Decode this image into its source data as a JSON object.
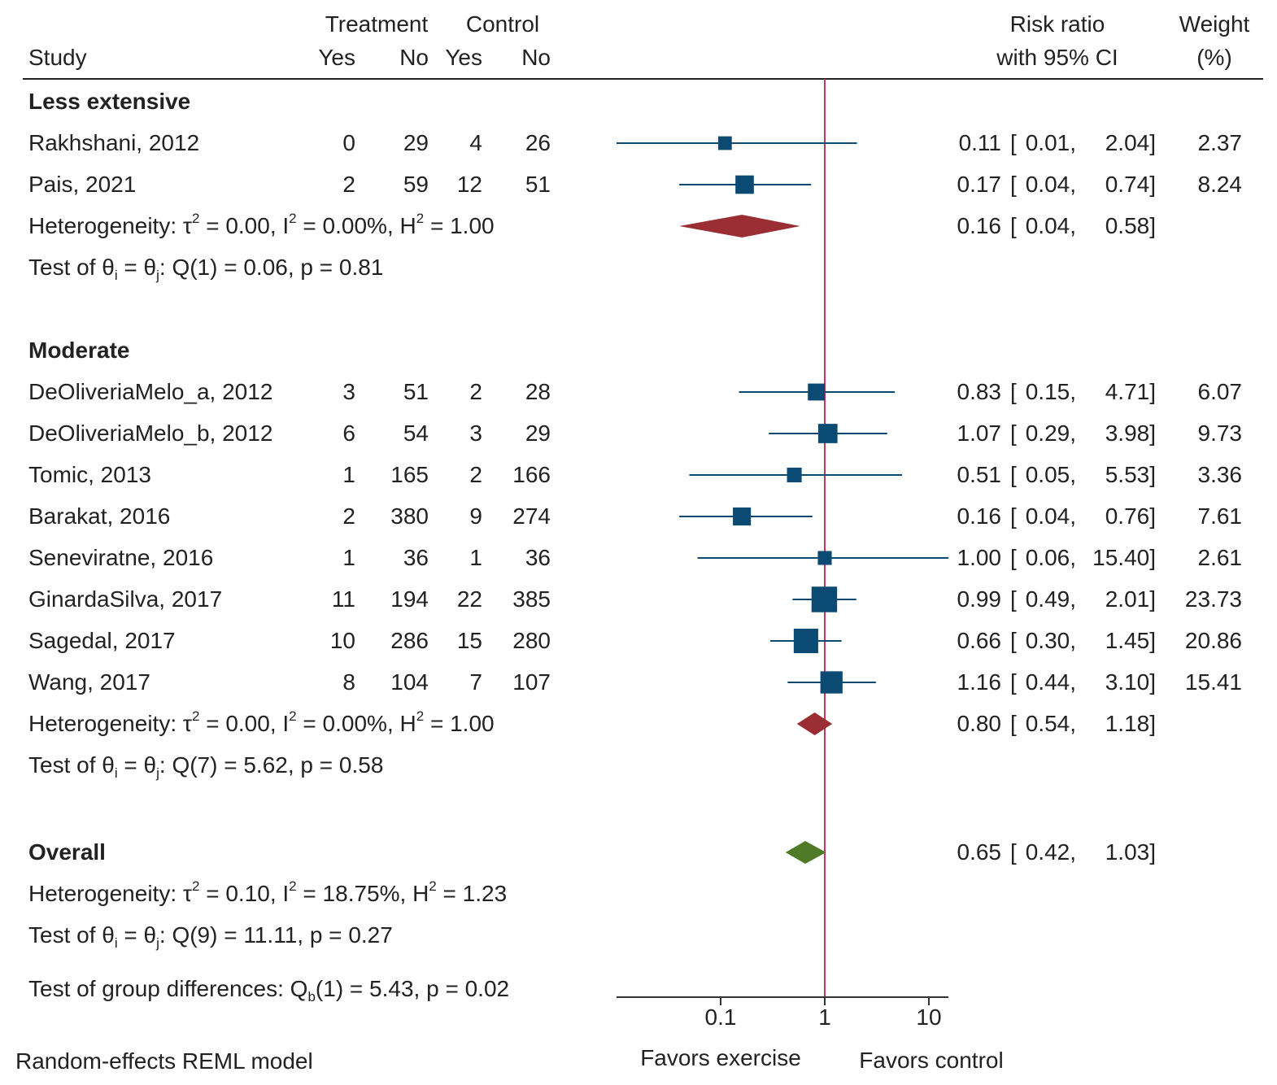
{
  "header": {
    "study": "Study",
    "treatment": "Treatment",
    "control": "Control",
    "yes": "Yes",
    "no": "No",
    "risk_ratio_line1": "Risk ratio",
    "risk_ratio_line2": "with 95% CI",
    "weight_line1": "Weight",
    "weight_line2": "(%)"
  },
  "chart_data": {
    "type": "forest",
    "scale": "log",
    "xlim": [
      0.01,
      15.4
    ],
    "xticks": [
      0.1,
      1,
      10
    ],
    "tick_labels": [
      "0.1",
      "1",
      "10"
    ],
    "reference_line": 1,
    "favors_left": "Favors exercise",
    "favors_right": "Favors control",
    "model_note": "Random-effects REML model",
    "groups": [
      {
        "name": "Less extensive",
        "studies": [
          {
            "name": "Rakhshani, 2012",
            "t_yes": "0",
            "t_no": "29",
            "c_yes": "4",
            "c_no": "26",
            "rr": 0.11,
            "lo": 0.01,
            "hi": 2.04,
            "rr_label": "0.11",
            "lo_label": "0.01,",
            "hi_label": "2.04]",
            "weight": 2.37,
            "weight_label": "2.37"
          },
          {
            "name": "Pais, 2021",
            "t_yes": "2",
            "t_no": "59",
            "c_yes": "12",
            "c_no": "51",
            "rr": 0.17,
            "lo": 0.04,
            "hi": 0.74,
            "rr_label": "0.17",
            "lo_label": "0.04,",
            "hi_label": "0.74]",
            "weight": 8.24,
            "weight_label": "8.24"
          }
        ],
        "summary": {
          "rr": 0.16,
          "lo": 0.04,
          "hi": 0.58,
          "rr_label": "0.16",
          "lo_label": "0.04,",
          "hi_label": "0.58]"
        },
        "heterogeneity": {
          "prefix": "Heterogeneity: τ",
          "tau": " = 0.00, I",
          "i2": " = 0.00%, H",
          "h2": " = 1.00"
        },
        "test": {
          "prefix": "Test of θ",
          "mid": " = θ",
          "stat": ": Q(1) = 0.06, p = 0.81"
        }
      },
      {
        "name": "Moderate",
        "studies": [
          {
            "name": "DeOliveriaMelo_a, 2012",
            "t_yes": "3",
            "t_no": "51",
            "c_yes": "2",
            "c_no": "28",
            "rr": 0.83,
            "lo": 0.15,
            "hi": 4.71,
            "rr_label": "0.83",
            "lo_label": "0.15,",
            "hi_label": "4.71]",
            "weight": 6.07,
            "weight_label": "6.07"
          },
          {
            "name": "DeOliveriaMelo_b, 2012",
            "t_yes": "6",
            "t_no": "54",
            "c_yes": "3",
            "c_no": "29",
            "rr": 1.07,
            "lo": 0.29,
            "hi": 3.98,
            "rr_label": "1.07",
            "lo_label": "0.29,",
            "hi_label": "3.98]",
            "weight": 9.73,
            "weight_label": "9.73"
          },
          {
            "name": "Tomic, 2013",
            "t_yes": "1",
            "t_no": "165",
            "c_yes": "2",
            "c_no": "166",
            "rr": 0.51,
            "lo": 0.05,
            "hi": 5.53,
            "rr_label": "0.51",
            "lo_label": "0.05,",
            "hi_label": "5.53]",
            "weight": 3.36,
            "weight_label": "3.36"
          },
          {
            "name": "Barakat, 2016",
            "t_yes": "2",
            "t_no": "380",
            "c_yes": "9",
            "c_no": "274",
            "rr": 0.16,
            "lo": 0.04,
            "hi": 0.76,
            "rr_label": "0.16",
            "lo_label": "0.04,",
            "hi_label": "0.76]",
            "weight": 7.61,
            "weight_label": "7.61"
          },
          {
            "name": "Seneviratne, 2016",
            "t_yes": "1",
            "t_no": "36",
            "c_yes": "1",
            "c_no": "36",
            "rr": 1.0,
            "lo": 0.06,
            "hi": 15.4,
            "rr_label": "1.00",
            "lo_label": "0.06,",
            "hi_label": "15.40]",
            "weight": 2.61,
            "weight_label": "2.61"
          },
          {
            "name": "GinardaSilva, 2017",
            "t_yes": "11",
            "t_no": "194",
            "c_yes": "22",
            "c_no": "385",
            "rr": 0.99,
            "lo": 0.49,
            "hi": 2.01,
            "rr_label": "0.99",
            "lo_label": "0.49,",
            "hi_label": "2.01]",
            "weight": 23.73,
            "weight_label": "23.73"
          },
          {
            "name": "Sagedal, 2017",
            "t_yes": "10",
            "t_no": "286",
            "c_yes": "15",
            "c_no": "280",
            "rr": 0.66,
            "lo": 0.3,
            "hi": 1.45,
            "rr_label": "0.66",
            "lo_label": "0.30,",
            "hi_label": "1.45]",
            "weight": 20.86,
            "weight_label": "20.86"
          },
          {
            "name": "Wang, 2017",
            "t_yes": "8",
            "t_no": "104",
            "c_yes": "7",
            "c_no": "107",
            "rr": 1.16,
            "lo": 0.44,
            "hi": 3.1,
            "rr_label": "1.16",
            "lo_label": "0.44,",
            "hi_label": "3.10]",
            "weight": 15.41,
            "weight_label": "15.41"
          }
        ],
        "summary": {
          "rr": 0.8,
          "lo": 0.54,
          "hi": 1.18,
          "rr_label": "0.80",
          "lo_label": "0.54,",
          "hi_label": "1.18]"
        },
        "heterogeneity": {
          "prefix": "Heterogeneity: τ",
          "tau": " = 0.00, I",
          "i2": " = 0.00%, H",
          "h2": " = 1.00"
        },
        "test": {
          "prefix": "Test of θ",
          "mid": " = θ",
          "stat": ": Q(7) = 5.62, p = 0.58"
        }
      }
    ],
    "overall": {
      "name": "Overall",
      "rr": 0.65,
      "lo": 0.42,
      "hi": 1.03,
      "rr_label": "0.65",
      "lo_label": "0.42,",
      "hi_label": "1.03]",
      "heterogeneity": {
        "prefix": "Heterogeneity: τ",
        "tau": " = 0.10, I",
        "i2": " = 18.75%, H",
        "h2": " = 1.23"
      },
      "test": {
        "prefix": "Test of θ",
        "mid": " = θ",
        "stat": ": Q(9) = 11.11, p = 0.27"
      },
      "group_diff": {
        "prefix": "Test of group differences: Q",
        "sub": "b",
        "stat": "(1) = 5.43, p = 0.02"
      }
    },
    "colors": {
      "study_marker": "#0b4a72",
      "subgroup_diamond": "#9b2d35",
      "overall_diamond": "#4f7a28",
      "reference_line": "#c8365a",
      "axis": "#333333"
    }
  }
}
